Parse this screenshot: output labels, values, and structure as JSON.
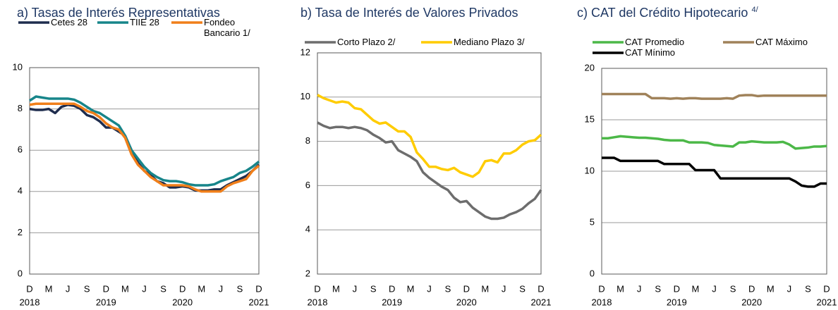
{
  "chart_data": [
    {
      "type": "line",
      "title": "a) Tasas de Interés Representativas",
      "categories": [
        "D",
        null,
        null,
        "M",
        null,
        null,
        "J",
        null,
        null,
        "S",
        null,
        null,
        "D",
        null,
        null,
        "M",
        null,
        null,
        "J",
        null,
        null,
        "S",
        null,
        null,
        "D",
        null,
        null,
        "M",
        null,
        null,
        "J",
        null,
        null,
        "S",
        null,
        null,
        "D"
      ],
      "year_labels": [
        "2018",
        "2019",
        "2020",
        "2021"
      ],
      "ylim": [
        0,
        10
      ],
      "yticks": [
        0,
        2,
        4,
        6,
        8,
        10
      ],
      "grid": true,
      "series": [
        {
          "name": "Cetes 28",
          "color": "#1f2d4e",
          "values": [
            8.0,
            7.95,
            7.95,
            8.0,
            7.8,
            8.1,
            8.2,
            8.15,
            8.0,
            7.7,
            7.6,
            7.4,
            7.1,
            7.1,
            6.9,
            6.7,
            6.0,
            5.4,
            5.0,
            4.8,
            4.5,
            4.4,
            4.2,
            4.2,
            4.25,
            4.2,
            4.05,
            4.05,
            4.05,
            4.1,
            4.1,
            4.3,
            4.45,
            4.6,
            4.75,
            5.0,
            5.3
          ]
        },
        {
          "name": "TIIE 28",
          "color": "#17858a",
          "values": [
            8.4,
            8.6,
            8.55,
            8.5,
            8.5,
            8.5,
            8.5,
            8.45,
            8.3,
            8.1,
            7.9,
            7.8,
            7.6,
            7.4,
            7.2,
            6.7,
            6.0,
            5.6,
            5.2,
            4.9,
            4.7,
            4.55,
            4.5,
            4.5,
            4.45,
            4.35,
            4.3,
            4.3,
            4.3,
            4.35,
            4.5,
            4.6,
            4.7,
            4.9,
            5.0,
            5.2,
            5.45
          ]
        },
        {
          "name": "Fondeo Bancario 1/",
          "color": "#f07f1a",
          "values": [
            8.2,
            8.25,
            8.25,
            8.25,
            8.25,
            8.25,
            8.25,
            8.25,
            8.1,
            7.9,
            7.8,
            7.6,
            7.3,
            7.1,
            7.0,
            6.6,
            5.8,
            5.3,
            5.0,
            4.7,
            4.5,
            4.3,
            4.3,
            4.3,
            4.3,
            4.25,
            4.1,
            4.0,
            4.0,
            4.0,
            4.0,
            4.25,
            4.4,
            4.5,
            4.6,
            5.0,
            5.25
          ]
        }
      ]
    },
    {
      "type": "line",
      "title": "b) Tasa de Interés de Valores Privados",
      "categories": [
        "D",
        null,
        null,
        "M",
        null,
        null,
        "J",
        null,
        null,
        "S",
        null,
        null,
        "D",
        null,
        null,
        "M",
        null,
        null,
        "J",
        null,
        null,
        "S",
        null,
        null,
        "D",
        null,
        null,
        "M",
        null,
        null,
        "J",
        null,
        null,
        "S",
        null,
        null,
        "D"
      ],
      "year_labels": [
        "2018",
        "2019",
        "2020",
        "2021"
      ],
      "ylim": [
        2,
        12
      ],
      "yticks": [
        2,
        4,
        6,
        8,
        10,
        12
      ],
      "grid": true,
      "series": [
        {
          "name": "Corto Plazo 2/",
          "color": "#6d6d6d",
          "values": [
            8.85,
            8.7,
            8.6,
            8.65,
            8.65,
            8.6,
            8.65,
            8.6,
            8.5,
            8.3,
            8.15,
            7.95,
            8.0,
            7.6,
            7.45,
            7.3,
            7.1,
            6.6,
            6.35,
            6.15,
            5.95,
            5.8,
            5.45,
            5.25,
            5.3,
            5.0,
            4.8,
            4.6,
            4.5,
            4.5,
            4.55,
            4.7,
            4.8,
            4.95,
            5.2,
            5.4,
            5.8
          ]
        },
        {
          "name": "Mediano Plazo 3/",
          "color": "#ffcc00",
          "values": [
            10.1,
            9.95,
            9.85,
            9.75,
            9.8,
            9.75,
            9.5,
            9.45,
            9.2,
            8.95,
            8.8,
            8.85,
            8.65,
            8.45,
            8.45,
            8.2,
            7.5,
            7.2,
            6.85,
            6.85,
            6.75,
            6.7,
            6.8,
            6.6,
            6.5,
            6.4,
            6.6,
            7.1,
            7.15,
            7.05,
            7.45,
            7.45,
            7.6,
            7.85,
            8.0,
            8.05,
            8.3
          ]
        }
      ]
    },
    {
      "type": "line",
      "title": "c) CAT del Crédito Hipotecario",
      "title_superscript": "4/",
      "categories": [
        "D",
        null,
        null,
        "M",
        null,
        null,
        "J",
        null,
        null,
        "S",
        null,
        null,
        "D",
        null,
        null,
        "M",
        null,
        null,
        "J",
        null,
        null,
        "S",
        null,
        null,
        "D",
        null,
        null,
        "M",
        null,
        null,
        "J",
        null,
        null,
        "S",
        null,
        null,
        "D"
      ],
      "year_labels": [
        "2018",
        "2019",
        "2020",
        "2021"
      ],
      "ylim": [
        0,
        20
      ],
      "yticks": [
        0,
        5,
        10,
        15,
        20
      ],
      "grid": true,
      "series": [
        {
          "name": "CAT Promedio",
          "color": "#4cb848",
          "values": [
            13.2,
            13.2,
            13.3,
            13.4,
            13.35,
            13.3,
            13.25,
            13.25,
            13.2,
            13.15,
            13.05,
            13.0,
            13.0,
            13.0,
            12.8,
            12.8,
            12.8,
            12.75,
            12.55,
            12.5,
            12.45,
            12.4,
            12.8,
            12.8,
            12.9,
            12.85,
            12.8,
            12.8,
            12.8,
            12.85,
            12.6,
            12.2,
            12.25,
            12.3,
            12.4,
            12.4,
            12.45
          ]
        },
        {
          "name": "CAT Máximo",
          "color": "#a0825a",
          "values": [
            17.5,
            17.5,
            17.5,
            17.5,
            17.5,
            17.5,
            17.5,
            17.5,
            17.1,
            17.1,
            17.1,
            17.05,
            17.1,
            17.05,
            17.1,
            17.1,
            17.05,
            17.05,
            17.05,
            17.05,
            17.1,
            17.05,
            17.35,
            17.4,
            17.4,
            17.3,
            17.35,
            17.35,
            17.35,
            17.35,
            17.35,
            17.35,
            17.35,
            17.35,
            17.35,
            17.35,
            17.35
          ]
        },
        {
          "name": "CAT Mínimo",
          "color": "#000000",
          "values": [
            11.3,
            11.3,
            11.3,
            11.0,
            11.0,
            11.0,
            11.0,
            11.0,
            11.0,
            11.0,
            10.7,
            10.7,
            10.7,
            10.7,
            10.7,
            10.1,
            10.1,
            10.1,
            10.1,
            9.3,
            9.3,
            9.3,
            9.3,
            9.3,
            9.3,
            9.3,
            9.3,
            9.3,
            9.3,
            9.3,
            9.3,
            9.0,
            8.6,
            8.5,
            8.5,
            8.8,
            8.8
          ]
        }
      ]
    }
  ]
}
